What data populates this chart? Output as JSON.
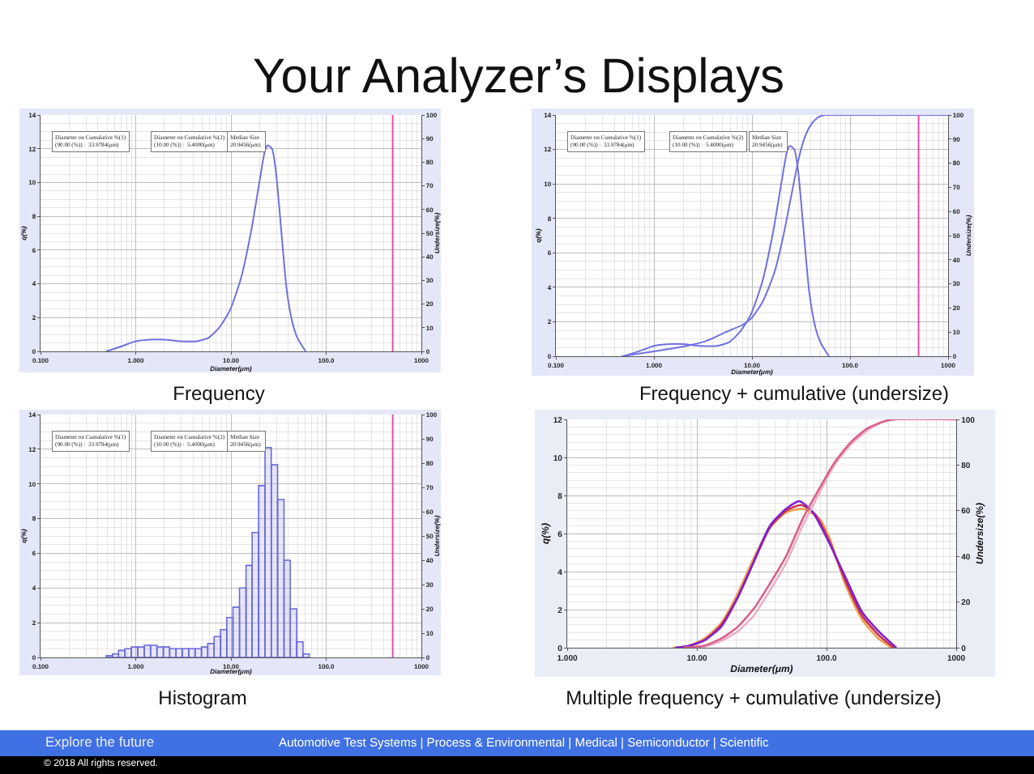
{
  "chart_data": [
    {
      "type": "other",
      "title": "Your Analyzer’s Displays"
    },
    {
      "type": "line",
      "title": "Frequency",
      "xlabel": "Diameter(μm)",
      "ylabel": "q(%)",
      "y2label": "Undersize(%)",
      "log": "x",
      "grid": true,
      "x": [
        0.49,
        0.71,
        1.0,
        1.4,
        2.0,
        3.0,
        4.4,
        5.8,
        7.5,
        9.7,
        12.7,
        16.4,
        20,
        22.8,
        24.3,
        27,
        29.6,
        33.7,
        38.4,
        43.8,
        49.9,
        60.9
      ],
      "values": [
        0,
        0.3,
        0.6,
        0.7,
        0.7,
        0.6,
        0.6,
        0.8,
        1.4,
        2.4,
        4.3,
        7.2,
        10.1,
        11.9,
        12.2,
        12.0,
        10.7,
        7.2,
        3.7,
        1.8,
        0.8,
        0
      ],
      "color": "#7070e0",
      "xlim": [
        0.1,
        1000
      ],
      "xticks": [
        {
          "value": 0.1,
          "label": "0.100"
        },
        {
          "value": 1,
          "label": "1.000"
        },
        {
          "value": 10,
          "label": "10.00"
        },
        {
          "value": 100,
          "label": "100.0"
        },
        {
          "value": 1000,
          "label": "1000"
        }
      ],
      "ylim": [
        0,
        14
      ],
      "yticks": [
        0,
        2,
        4,
        6,
        8,
        10,
        12,
        14
      ],
      "y2lim": [
        0,
        100
      ],
      "y2ticks": [
        0,
        10,
        20,
        30,
        40,
        50,
        60,
        70,
        80,
        90,
        100
      ],
      "ref_lines": [
        {
          "axis": "x",
          "value": 500,
          "color": "#e050a8"
        }
      ],
      "annotations": [
        "Diameter on Cumulative %(1)\n(90.00 (%)) :  33.9784(μm)",
        "Diameter on Cumulative %(2)\n(10.00 (%)) :  5.4000(μm)",
        "Median Size\n20.9456(μm)"
      ]
    },
    {
      "type": "line",
      "title": "Frequency + cumulative (undersize)",
      "xlabel": "Diameter(μm)",
      "ylabel": "q(%)",
      "y2label": "Undersize(%)",
      "log": "x",
      "grid": true,
      "series": [
        {
          "color": "#7070e0",
          "x": [
            0.49,
            0.71,
            1.0,
            1.4,
            2.0,
            3.0,
            4.4,
            5.8,
            7.5,
            9.7,
            12.7,
            16.4,
            20,
            22.8,
            24.3,
            27,
            29.6,
            33.7,
            38.4,
            43.8,
            49.9,
            60.9
          ],
          "values": [
            0,
            0.3,
            0.6,
            0.7,
            0.7,
            0.6,
            0.6,
            0.8,
            1.4,
            2.4,
            4.3,
            7.2,
            10.1,
            11.9,
            12.2,
            12.0,
            10.7,
            7.2,
            3.7,
            1.8,
            0.8,
            0
          ]
        },
        {
          "color": "#7070e0",
          "axis": "y2",
          "x": [
            0.47,
            1.0,
            2.0,
            3.5,
            5.4,
            8.0,
            10,
            13,
            17,
            20.9,
            25,
            30,
            34,
            40,
            47,
            55,
            65,
            1000
          ],
          "values": [
            0,
            2,
            4,
            6.5,
            10,
            13,
            16,
            23,
            35,
            50,
            66,
            82,
            90,
            96,
            99,
            100,
            100,
            100
          ]
        }
      ],
      "xlim": [
        0.1,
        1000
      ],
      "xticks": [
        {
          "value": 0.1,
          "label": "0.100"
        },
        {
          "value": 1,
          "label": "1.000"
        },
        {
          "value": 10,
          "label": "10.00"
        },
        {
          "value": 100,
          "label": "100.0"
        },
        {
          "value": 1000,
          "label": "1000"
        }
      ],
      "ylim": [
        0,
        14
      ],
      "yticks": [
        0,
        2,
        4,
        6,
        8,
        10,
        12,
        14
      ],
      "y2lim": [
        0,
        100
      ],
      "y2ticks": [
        0,
        10,
        20,
        30,
        40,
        50,
        60,
        70,
        80,
        90,
        100
      ],
      "ref_lines": [
        {
          "axis": "x",
          "value": 500,
          "color": "#e050a8"
        }
      ],
      "annotations": [
        "Diameter on Cumulative %(1)\n(90.00 (%)) :  33.9784(μm)",
        "Diameter on Cumulative %(2)\n(10.00 (%)) :  5.4000(μm)",
        "Median Size\n20.9456(μm)"
      ]
    },
    {
      "type": "histogram",
      "title": "Histogram",
      "xlabel": "Diameter(μm)",
      "ylabel": "q(%)",
      "y2label": "Undersize(%)",
      "log": "x",
      "grid": true,
      "color": "#6a6ad8",
      "bins": [
        0.49,
        0.57,
        0.66,
        0.77,
        0.9,
        1.05,
        1.23,
        1.43,
        1.67,
        1.95,
        2.27,
        2.65,
        3.08,
        3.6,
        4.2,
        4.9,
        5.7,
        6.65,
        7.76,
        9.04,
        10.5,
        12.3,
        14.4,
        16.7,
        19.5,
        22.8,
        26.5,
        30.9,
        36.1,
        42,
        49,
        57.1,
        66.5
      ],
      "values": [
        0.1,
        0.2,
        0.4,
        0.5,
        0.6,
        0.6,
        0.7,
        0.7,
        0.6,
        0.6,
        0.5,
        0.5,
        0.5,
        0.5,
        0.5,
        0.6,
        0.8,
        1.2,
        1.6,
        2.3,
        2.9,
        4.0,
        5.3,
        7.2,
        9.9,
        12.1,
        11.1,
        9.1,
        5.6,
        2.8,
        0.9,
        0.2
      ],
      "xlim": [
        0.1,
        1000
      ],
      "xticks": [
        {
          "value": 0.1,
          "label": "0.100"
        },
        {
          "value": 1,
          "label": "1.000"
        },
        {
          "value": 10,
          "label": "10.00"
        },
        {
          "value": 100,
          "label": "100.0"
        },
        {
          "value": 1000,
          "label": "1000"
        }
      ],
      "ylim": [
        0,
        14
      ],
      "yticks": [
        0,
        2,
        4,
        6,
        8,
        10,
        12,
        14
      ],
      "y2lim": [
        0,
        100
      ],
      "y2ticks": [
        0,
        10,
        20,
        30,
        40,
        50,
        60,
        70,
        80,
        90,
        100
      ],
      "ref_lines": [
        {
          "axis": "x",
          "value": 500,
          "color": "#e050a8"
        }
      ],
      "annotations": [
        "Diameter on Cumulative %(1)\n(90.00 (%)) :  33.9784(μm)",
        "Diameter on Cumulative %(2)\n(10.00 (%)) :  5.4000(μm)",
        "Median Size\n20.9456(μm)"
      ]
    },
    {
      "type": "line",
      "title": "Multiple frequency + cumulative (undersize)",
      "xlabel": "Diameter(μm)",
      "ylabel": "q(%)",
      "y2label": "Undersize(%)",
      "log": "x",
      "grid": true,
      "series": [
        {
          "color": "#eab0c4",
          "axis": "y2",
          "x": [
            7.9,
            11.5,
            15.4,
            20.5,
            27.4,
            36.5,
            48.7,
            64.9,
            86.6,
            115,
            154,
            205,
            274,
            332,
            1000
          ],
          "values": [
            0,
            0.5,
            3,
            7,
            14,
            25,
            37,
            53,
            67,
            80,
            89,
            95,
            99,
            100,
            100
          ]
        },
        {
          "color": "#d8608c",
          "axis": "y2",
          "x": [
            7.9,
            11.5,
            15.4,
            20.5,
            27.4,
            36.5,
            48.7,
            64.9,
            86.6,
            115,
            154,
            205,
            274,
            332,
            1000
          ],
          "values": [
            0,
            1,
            4,
            9,
            17,
            28,
            40,
            56,
            69,
            81,
            90,
            96,
            99,
            100,
            100
          ]
        },
        {
          "color": "#f0a050",
          "x": [
            6.5,
            8.7,
            11.5,
            15.4,
            20.5,
            27.4,
            36.5,
            48.7,
            65.5,
            87.6,
            105,
            140,
            187,
            249,
            318
          ],
          "values": [
            0,
            0.1,
            0.5,
            1.3,
            2.8,
            4.7,
            6.3,
            7.1,
            7.3,
            6.8,
            5.8,
            3.3,
            1.5,
            0.5,
            0
          ]
        },
        {
          "color": "#c83050",
          "x": [
            7.1,
            8.7,
            11.5,
            15.4,
            20.5,
            27.4,
            36.5,
            48.7,
            63.9,
            82,
            105,
            140,
            187,
            249,
            330
          ],
          "values": [
            0,
            0.1,
            0.4,
            1.2,
            2.6,
            4.5,
            6.3,
            7.2,
            7.5,
            7.0,
            5.6,
            3.5,
            1.7,
            0.7,
            0
          ]
        },
        {
          "color": "#8020d0",
          "x": [
            6.8,
            8.7,
            11.5,
            15.4,
            20.5,
            27.4,
            36.5,
            48.7,
            61.9,
            78.7,
            105,
            140,
            187,
            249,
            345
          ],
          "values": [
            0,
            0.1,
            0.4,
            1.1,
            2.6,
            4.5,
            6.4,
            7.3,
            7.7,
            7.1,
            5.5,
            3.7,
            1.9,
            0.9,
            0
          ]
        }
      ],
      "xlim": [
        1,
        1000
      ],
      "xticks": [
        {
          "value": 1,
          "label": "1.000"
        },
        {
          "value": 10,
          "label": "10.00"
        },
        {
          "value": 100,
          "label": "100.0"
        },
        {
          "value": 1000,
          "label": "1000"
        }
      ],
      "ylim": [
        0,
        12
      ],
      "yticks": [
        0,
        2,
        4,
        6,
        8,
        10,
        12
      ],
      "y2lim": [
        0,
        100
      ],
      "y2ticks": [
        0,
        20,
        40,
        60,
        80,
        100
      ]
    },
    {
      "type": "other",
      "annotations": [
        "Explore the future",
        "Automotive Test Systems | Process & Environmental | Medical | Semiconductor | Scientific",
        "© 2018 All rights reserved."
      ]
    }
  ]
}
